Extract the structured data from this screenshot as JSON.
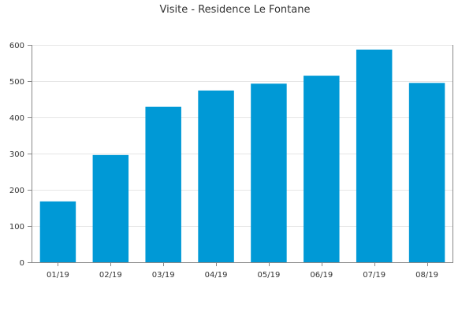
{
  "chart_data": {
    "type": "bar",
    "title": "Visite - Residence Le Fontane",
    "categories": [
      "01/19",
      "02/19",
      "03/19",
      "04/19",
      "05/19",
      "06/19",
      "07/19",
      "08/19"
    ],
    "values": [
      168,
      296,
      429,
      474,
      493,
      515,
      587,
      495
    ],
    "ylim": [
      0,
      600
    ],
    "yticks": [
      0,
      100,
      200,
      300,
      400,
      500,
      600
    ],
    "bar_color": "#0099d6",
    "grid": true,
    "legend": "none"
  }
}
